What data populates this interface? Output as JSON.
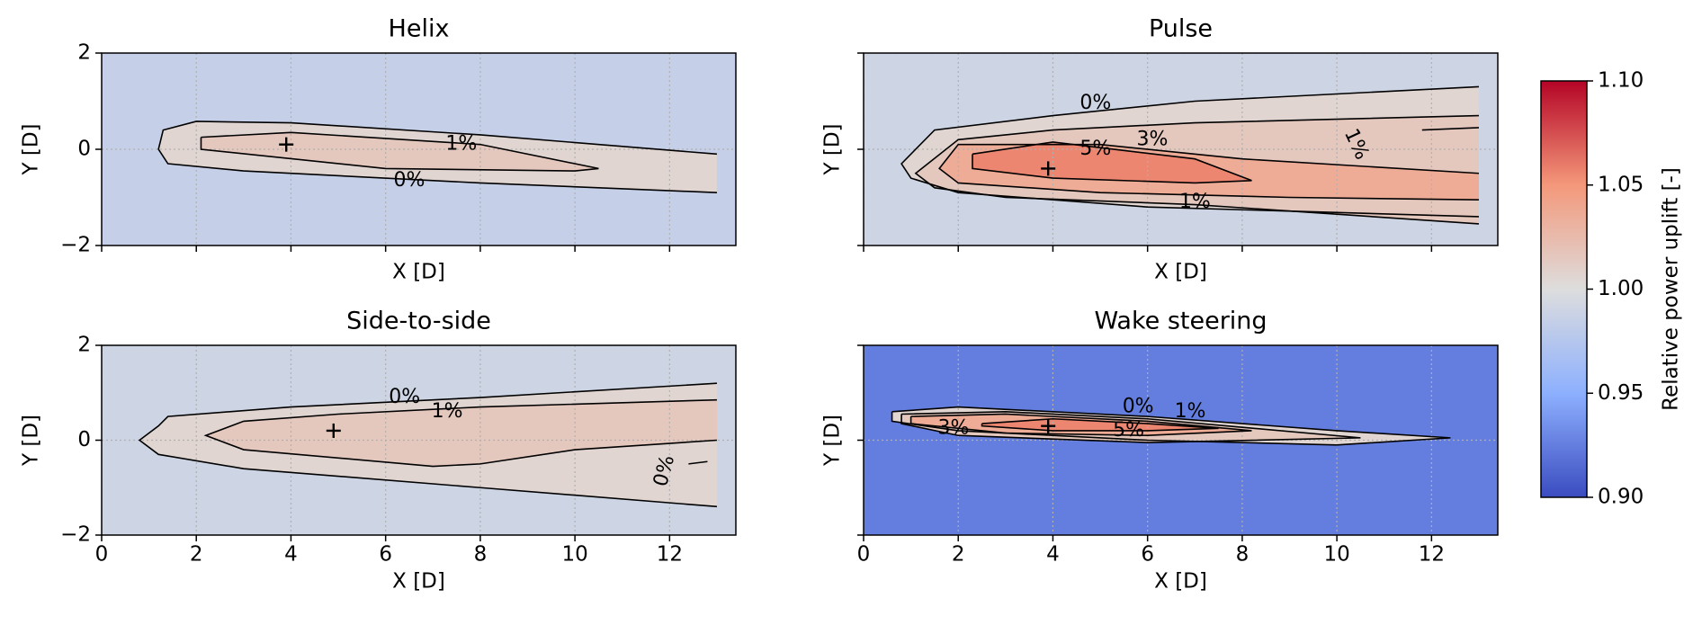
{
  "chart_data": [
    {
      "type": "heatmap",
      "title": "Helix",
      "xlabel": "X [D]",
      "ylabel": "Y [D]",
      "xlim": [
        0,
        13.4
      ],
      "ylim": [
        -2,
        2
      ],
      "xticks": [
        0,
        2,
        4,
        6,
        8,
        10,
        12
      ],
      "yticks": [
        {
          "value": -2,
          "label": "−2"
        },
        0,
        2
      ],
      "show_xtick_labels": false,
      "show_ytick_labels": true,
      "grid": true,
      "background": 0.985,
      "marker": {
        "x": 3.9,
        "y": 0.1
      },
      "contours": [
        {
          "value": 0,
          "label": "0%",
          "x": [
            13,
            8,
            4,
            2,
            1.3,
            1.2,
            1.4,
            3,
            8,
            13
          ],
          "y": [
            -0.1,
            0.3,
            0.55,
            0.58,
            0.4,
            0,
            -0.3,
            -0.45,
            -0.7,
            -0.9
          ]
        },
        {
          "value": 1,
          "label": "1%",
          "x": [
            2.1,
            4,
            8,
            10.5,
            10,
            6,
            2.1,
            2.1
          ],
          "y": [
            0.25,
            0.35,
            0.1,
            -0.4,
            -0.45,
            -0.4,
            0,
            0.25
          ]
        }
      ]
    },
    {
      "type": "heatmap",
      "title": "Pulse",
      "xlabel": "X [D]",
      "ylabel": "Y [D]",
      "xlim": [
        0,
        13.4
      ],
      "ylim": [
        -2,
        2
      ],
      "xticks": [
        0,
        2,
        4,
        6,
        8,
        10,
        12
      ],
      "yticks": [
        -2,
        0,
        2
      ],
      "show_xtick_labels": false,
      "show_ytick_labels": false,
      "grid": true,
      "background": 0.99,
      "marker": {
        "x": 3.9,
        "y": -0.4
      },
      "contours": [
        {
          "value": 0,
          "label": "0%",
          "x": [
            13,
            7,
            4,
            1.5,
            0.8,
            1,
            2,
            6,
            13
          ],
          "y": [
            1.3,
            1.0,
            0.7,
            0.4,
            -0.3,
            -0.6,
            -0.9,
            -1.2,
            -1.4
          ]
        },
        {
          "value": 1,
          "label": "1%",
          "x": [
            13,
            7,
            4,
            2,
            1.1,
            1.5,
            3,
            7,
            13
          ],
          "y": [
            0.7,
            0.55,
            0.4,
            0.2,
            -0.5,
            -0.8,
            -1,
            -1.15,
            -1.55
          ]
        },
        {
          "value": 1,
          "label": "1%",
          "x": [
            13,
            11.8
          ],
          "y": [
            0.45,
            0.4
          ]
        },
        {
          "value": 3,
          "label": "3%",
          "x": [
            13,
            8,
            5,
            2,
            1.6,
            2,
            5,
            9,
            13
          ],
          "y": [
            -0.5,
            -0.2,
            0.1,
            0.1,
            -0.4,
            -0.7,
            -0.9,
            -1,
            -1.05
          ]
        },
        {
          "value": 5,
          "label": "5%",
          "x": [
            2.3,
            4,
            7,
            8.2,
            7,
            4,
            2.3,
            2.3
          ],
          "y": [
            -0.1,
            0.15,
            -0.2,
            -0.65,
            -0.7,
            -0.6,
            -0.4,
            -0.1
          ]
        }
      ]
    },
    {
      "type": "heatmap",
      "title": "Side-to-side",
      "xlabel": "X [D]",
      "ylabel": "Y [D]",
      "xlim": [
        0,
        13.4
      ],
      "ylim": [
        -2,
        2
      ],
      "xticks": [
        0,
        2,
        4,
        6,
        8,
        10,
        12
      ],
      "yticks": [
        {
          "value": -2,
          "label": "−2"
        },
        0,
        2
      ],
      "show_xtick_labels": true,
      "show_ytick_labels": true,
      "grid": true,
      "background": 0.99,
      "marker": {
        "x": 4.9,
        "y": 0.2
      },
      "contours": [
        {
          "value": 0,
          "label": "0%",
          "x": [
            13,
            8,
            4,
            1.4,
            1.2,
            0.8,
            1.2,
            3,
            8,
            13
          ],
          "y": [
            1.2,
            0.9,
            0.7,
            0.5,
            0.3,
            0,
            -0.3,
            -0.6,
            -1,
            -1.4
          ]
        },
        {
          "value": 1,
          "label": "1%",
          "x": [
            13,
            8,
            5,
            3,
            2.2,
            3,
            7,
            8,
            10,
            13
          ],
          "y": [
            0.85,
            0.7,
            0.55,
            0.4,
            0.1,
            -0.2,
            -0.55,
            -0.5,
            -0.2,
            0
          ]
        },
        {
          "value": 0,
          "label": "0%",
          "x": [
            12.4,
            12.8
          ],
          "y": [
            -0.5,
            -0.45
          ]
        }
      ]
    },
    {
      "type": "heatmap",
      "title": "Wake steering",
      "xlabel": "X [D]",
      "ylabel": "Y [D]",
      "xlim": [
        0,
        13.4
      ],
      "ylim": [
        -2,
        2
      ],
      "xticks": [
        0,
        2,
        4,
        6,
        8,
        10,
        12
      ],
      "yticks": [
        -2,
        0,
        2
      ],
      "show_xtick_labels": true,
      "show_ytick_labels": false,
      "grid": true,
      "background": 0.925,
      "marker": {
        "x": 3.9,
        "y": 0.3
      },
      "contours": [
        {
          "value": 0,
          "label": "0%",
          "x": [
            0.6,
            2,
            6,
            10,
            12.4,
            10,
            6,
            2,
            0.6,
            0.6
          ],
          "y": [
            0.6,
            0.7,
            0.5,
            0.2,
            0.05,
            -0.1,
            0,
            0.2,
            0.4,
            0.6
          ]
        },
        {
          "value": 1,
          "label": "1%",
          "x": [
            0.8,
            3,
            6,
            10.5,
            6,
            2,
            0.8,
            0.8
          ],
          "y": [
            0.55,
            0.6,
            0.45,
            0.05,
            -0.05,
            0.1,
            0.35,
            0.55
          ]
        },
        {
          "value": 3,
          "label": "3%",
          "x": [
            1,
            3,
            6,
            8.2,
            6,
            3,
            1,
            1
          ],
          "y": [
            0.5,
            0.55,
            0.4,
            0.2,
            0.1,
            0.15,
            0.35,
            0.5
          ]
        },
        {
          "value": 5,
          "label": "5%",
          "x": [
            2.5,
            4,
            6,
            7.5,
            6,
            4,
            2.5,
            2.5
          ],
          "y": [
            0.35,
            0.45,
            0.35,
            0.25,
            0.2,
            0.2,
            0.3,
            0.35
          ]
        }
      ]
    }
  ],
  "colorbar": {
    "label": "Relative power uplift [-]",
    "colormap": "coolwarm",
    "lim": [
      0.9,
      1.1
    ],
    "ticks": [
      {
        "value": 0.9,
        "label": "0.90"
      },
      {
        "value": 0.95,
        "label": "0.95"
      },
      {
        "value": 1.0,
        "label": "1.00"
      },
      {
        "value": 1.05,
        "label": "1.05"
      },
      {
        "value": 1.1,
        "label": "1.10"
      }
    ]
  }
}
